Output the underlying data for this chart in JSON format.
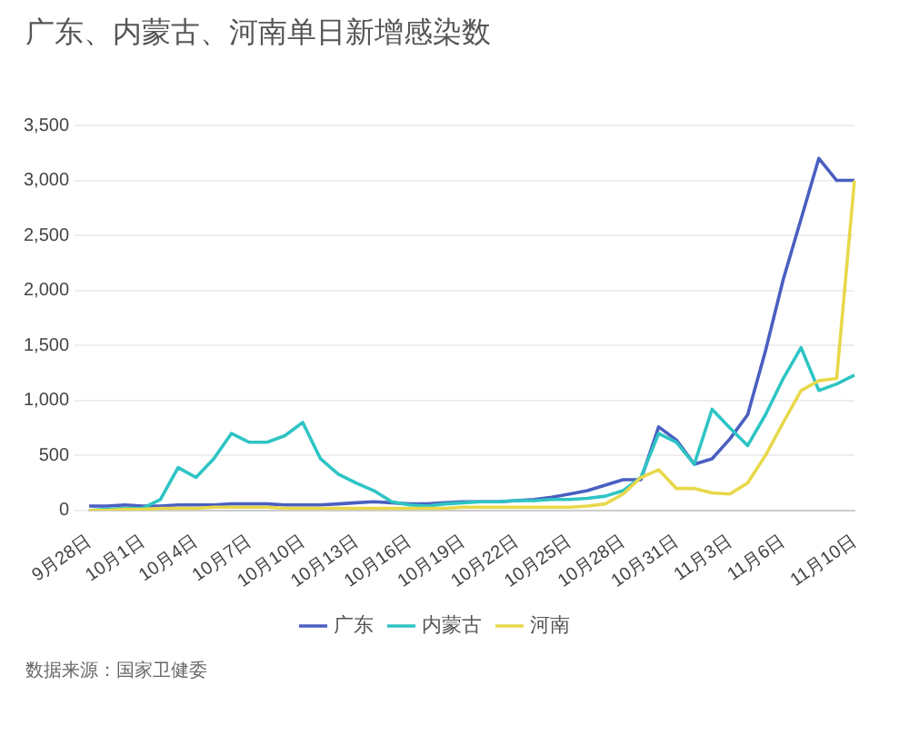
{
  "chart_data": {
    "type": "line",
    "title": "广东、内蒙古、河南单日新增感染数",
    "categories": [
      "9月28日",
      null,
      null,
      "10月1日",
      null,
      null,
      "10月4日",
      null,
      null,
      "10月7日",
      null,
      null,
      "10月10日",
      null,
      null,
      "10月13日",
      null,
      null,
      "10月16日",
      null,
      null,
      "10月19日",
      null,
      null,
      "10月22日",
      null,
      null,
      "10月25日",
      null,
      null,
      "10月28日",
      null,
      null,
      "10月31日",
      null,
      null,
      "11月3日",
      null,
      null,
      "11月6日",
      null,
      null,
      null,
      "11月10日"
    ],
    "series": [
      {
        "name": "广东",
        "color": "#4a5fc1",
        "values": [
          40,
          40,
          50,
          40,
          40,
          50,
          50,
          50,
          60,
          60,
          60,
          50,
          50,
          50,
          60,
          70,
          80,
          70,
          60,
          60,
          70,
          80,
          80,
          80,
          90,
          100,
          120,
          150,
          180,
          230,
          280,
          280,
          760,
          640,
          420,
          470,
          650,
          870,
          1450,
          2100,
          2650,
          3200,
          3000,
          3000
        ]
      },
      {
        "name": "内蒙古",
        "color": "#2ec4c4",
        "values": [
          0,
          10,
          20,
          20,
          100,
          390,
          300,
          470,
          700,
          620,
          620,
          680,
          800,
          470,
          330,
          250,
          180,
          80,
          50,
          40,
          60,
          70,
          80,
          80,
          90,
          90,
          100,
          100,
          110,
          130,
          180,
          300,
          700,
          620,
          420,
          920,
          750,
          590,
          870,
          1200,
          1480,
          1090,
          1150,
          1230
        ]
      },
      {
        "name": "河南",
        "color": "#e8d84a",
        "values": [
          0,
          0,
          10,
          10,
          20,
          20,
          20,
          30,
          30,
          30,
          30,
          20,
          20,
          20,
          20,
          20,
          20,
          20,
          20,
          20,
          20,
          30,
          30,
          30,
          30,
          30,
          30,
          30,
          40,
          60,
          150,
          300,
          370,
          200,
          200,
          160,
          150,
          250,
          500,
          800,
          1090,
          1180,
          1200,
          3000
        ]
      }
    ],
    "ylim": [
      0,
      3500
    ],
    "yticks": [
      0,
      {
        "value": 500,
        "label": "500"
      },
      {
        "value": 1000,
        "label": "1,000"
      },
      {
        "value": 1500,
        "label": "1,500"
      },
      {
        "value": 2000,
        "label": "2,000"
      },
      {
        "value": 2500,
        "label": "2,500"
      },
      {
        "value": 3000,
        "label": "3,000"
      },
      {
        "value": 3500,
        "label": "3,500"
      }
    ],
    "grid": "y",
    "legend": "bottom",
    "marker": "none",
    "line_style": "solid",
    "annotations": [
      "数据来源：国家卫健委"
    ]
  }
}
